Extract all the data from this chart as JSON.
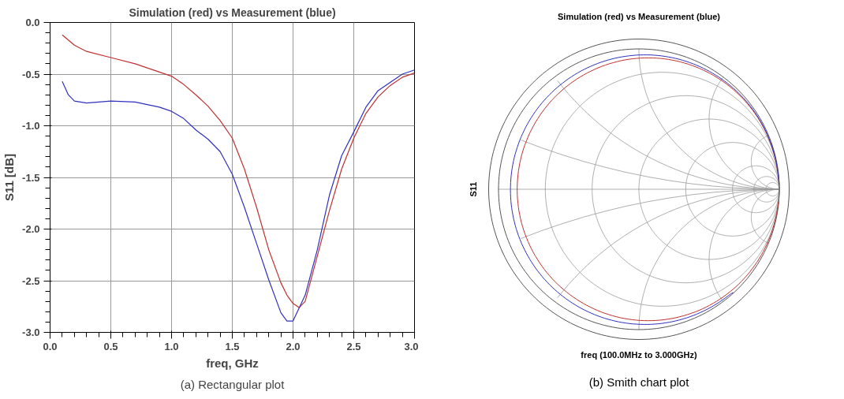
{
  "chart_data": [
    {
      "type": "line",
      "title": "Simulation (red) vs Measurement (blue)",
      "xlabel": "freq, GHz",
      "ylabel": "S11 [dB]",
      "annotations": [
        "(a) Rectangular plot"
      ],
      "xlim": [
        0,
        3
      ],
      "xticks": [
        {
          "value": 0,
          "label": "0.0"
        },
        {
          "value": 0.5,
          "label": "0.5"
        },
        {
          "value": 1,
          "label": "1.0"
        },
        {
          "value": 1.5,
          "label": "1.5"
        },
        {
          "value": 2,
          "label": "2.0"
        },
        {
          "value": 2.5,
          "label": "2.5"
        },
        {
          "value": 3,
          "label": "3.0"
        }
      ],
      "ylim": [
        -3,
        0
      ],
      "yticks": [
        {
          "value": -3,
          "label": "-3.0"
        },
        {
          "value": -2.5,
          "label": "-2.5"
        },
        {
          "value": -2,
          "label": "-2.0"
        },
        {
          "value": -1.5,
          "label": "-1.5"
        },
        {
          "value": -1,
          "label": "-1.0"
        },
        {
          "value": -0.5,
          "label": "-0.5"
        },
        {
          "value": 0,
          "label": "0.0"
        }
      ],
      "grid": true,
      "line_style": "solid",
      "series": [
        {
          "color": "#c03030",
          "x": [
            0.1,
            0.2,
            0.3,
            0.5,
            0.7,
            0.9,
            1.0,
            1.1,
            1.2,
            1.3,
            1.4,
            1.5,
            1.6,
            1.7,
            1.8,
            1.9,
            1.95,
            2.0,
            2.05,
            2.1,
            2.2,
            2.3,
            2.4,
            2.5,
            2.6,
            2.7,
            2.8,
            2.9,
            3.0
          ],
          "values": [
            -0.12,
            -0.22,
            -0.28,
            -0.34,
            -0.4,
            -0.48,
            -0.52,
            -0.6,
            -0.7,
            -0.81,
            -0.95,
            -1.12,
            -1.42,
            -1.79,
            -2.2,
            -2.52,
            -2.64,
            -2.72,
            -2.76,
            -2.7,
            -2.26,
            -1.82,
            -1.42,
            -1.12,
            -0.88,
            -0.72,
            -0.61,
            -0.53,
            -0.49
          ]
        },
        {
          "color": "#3030c0",
          "x": [
            0.1,
            0.15,
            0.2,
            0.3,
            0.5,
            0.7,
            0.9,
            1.0,
            1.1,
            1.2,
            1.3,
            1.4,
            1.5,
            1.6,
            1.7,
            1.8,
            1.9,
            1.95,
            2.0,
            2.1,
            2.2,
            2.3,
            2.4,
            2.5,
            2.6,
            2.7,
            2.8,
            2.9,
            3.0
          ],
          "values": [
            -0.57,
            -0.7,
            -0.76,
            -0.78,
            -0.76,
            -0.77,
            -0.82,
            -0.86,
            -0.93,
            -1.04,
            -1.13,
            -1.25,
            -1.47,
            -1.79,
            -2.14,
            -2.49,
            -2.81,
            -2.89,
            -2.89,
            -2.64,
            -2.2,
            -1.67,
            -1.29,
            -1.06,
            -0.82,
            -0.66,
            -0.58,
            -0.5,
            -0.46
          ]
        }
      ]
    },
    {
      "type": "other",
      "title": "Simulation (red) vs Measurement (blue)",
      "ylabel": "S11",
      "xlabel": "freq (100.0MHz to 3.000GHz)",
      "annotations": [
        "(b) Smith chart plot"
      ]
    }
  ]
}
